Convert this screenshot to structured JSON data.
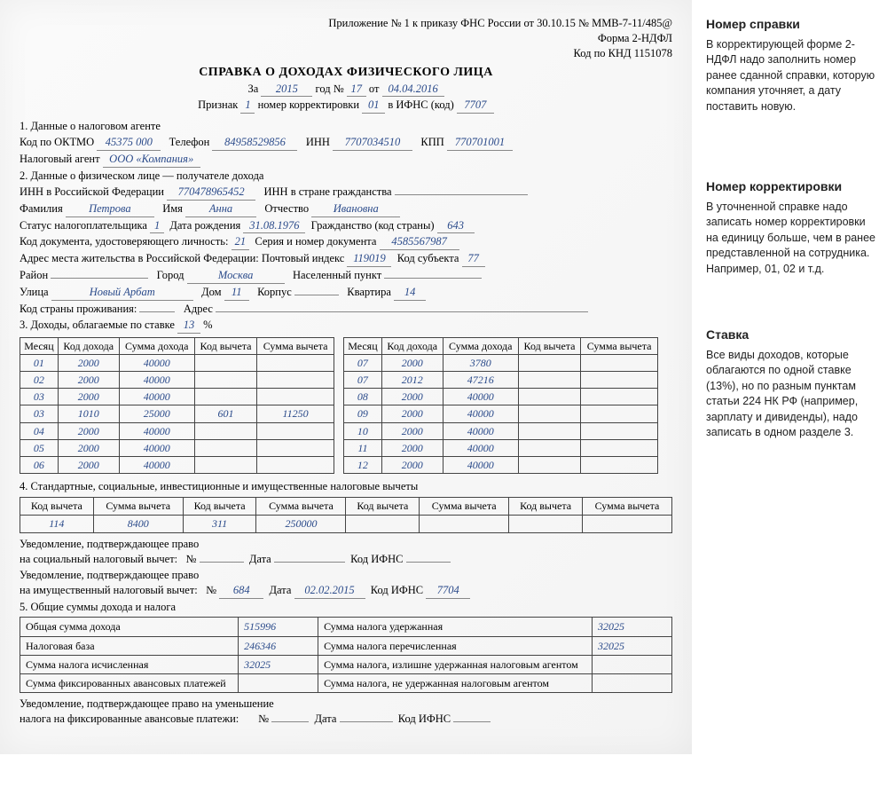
{
  "header": {
    "line1": "Приложение № 1 к приказу ФНС России от 30.10.15 № ММВ-7-11/485@",
    "line2": "Форма 2-НДФЛ",
    "line3": "Код по КНД 1151078"
  },
  "title": "СПРАВКА О ДОХОДАХ ФИЗИЧЕСКОГО ЛИЦА",
  "subtitle": {
    "za": "За",
    "year": "2015",
    "god_n": "год №",
    "num": "17",
    "ot": "от",
    "date": "04.04.2016"
  },
  "priznak": {
    "label": "Признак",
    "val": "1",
    "corr_label": "номер корректировки",
    "corr": "01",
    "ifns_label": "в ИФНС (код)",
    "ifns": "7707"
  },
  "sec1": {
    "head": "1. Данные о налоговом агенте",
    "oktmo_l": "Код по ОКТМО",
    "oktmo": "45375 000",
    "tel_l": "Телефон",
    "tel": "84958529856",
    "inn_l": "ИНН",
    "inn": "7707034510",
    "kpp_l": "КПП",
    "kpp": "770701001",
    "agent_l": "Налоговый агент",
    "agent": "ООО «Компания»"
  },
  "sec2": {
    "head": "2. Данные о физическом лице — получателе дохода",
    "innrf_l": "ИНН в Российской Федерации",
    "innrf": "770478965452",
    "inncc_l": "ИНН в стране гражданства",
    "inncc": "",
    "fam_l": "Фамилия",
    "fam": "Петрова",
    "name_l": "Имя",
    "name": "Анна",
    "otch_l": "Отчество",
    "otch": "Ивановна",
    "status_l": "Статус налогоплательщика",
    "status": "1",
    "birth_l": "Дата рождения",
    "birth": "31.08.1976",
    "cit_l": "Гражданство (код страны)",
    "cit": "643",
    "doccode_l": "Код документа, удостоверяющего личность:",
    "doccode": "21",
    "docsn_l": "Серия и номер документа",
    "docsn": "4585567987",
    "addr_l": "Адрес места жительства в Российской Федерации: Почтовый индекс",
    "addr_idx": "119019",
    "subj_l": "Код субъекта",
    "subj": "77",
    "rayon_l": "Район",
    "rayon": "",
    "city_l": "Город",
    "city": "Москва",
    "np_l": "Населенный пункт",
    "np": "",
    "street_l": "Улица",
    "street": "Новый Арбат",
    "dom_l": "Дом",
    "dom": "11",
    "korp_l": "Корпус",
    "korp": "",
    "kv_l": "Квартира",
    "kv": "14",
    "ccres_l": "Код страны проживания:",
    "ccres": "",
    "addr2_l": "Адрес",
    "addr2": ""
  },
  "sec3": {
    "head_a": "3. Доходы, облагаемые по ставке",
    "rate": "13",
    "pct": "%"
  },
  "income_headers": {
    "month": "Месяц",
    "code": "Код дохода",
    "sum": "Сумма дохода",
    "dcode": "Код вычета",
    "dsum": "Сумма вычета"
  },
  "income_left": [
    {
      "m": "01",
      "c": "2000",
      "s": "40000",
      "dc": "",
      "ds": ""
    },
    {
      "m": "02",
      "c": "2000",
      "s": "40000",
      "dc": "",
      "ds": ""
    },
    {
      "m": "03",
      "c": "2000",
      "s": "40000",
      "dc": "",
      "ds": ""
    },
    {
      "m": "03",
      "c": "1010",
      "s": "25000",
      "dc": "601",
      "ds": "11250"
    },
    {
      "m": "04",
      "c": "2000",
      "s": "40000",
      "dc": "",
      "ds": ""
    },
    {
      "m": "05",
      "c": "2000",
      "s": "40000",
      "dc": "",
      "ds": ""
    },
    {
      "m": "06",
      "c": "2000",
      "s": "40000",
      "dc": "",
      "ds": ""
    }
  ],
  "income_right": [
    {
      "m": "07",
      "c": "2000",
      "s": "3780",
      "dc": "",
      "ds": ""
    },
    {
      "m": "07",
      "c": "2012",
      "s": "47216",
      "dc": "",
      "ds": ""
    },
    {
      "m": "08",
      "c": "2000",
      "s": "40000",
      "dc": "",
      "ds": ""
    },
    {
      "m": "09",
      "c": "2000",
      "s": "40000",
      "dc": "",
      "ds": ""
    },
    {
      "m": "10",
      "c": "2000",
      "s": "40000",
      "dc": "",
      "ds": ""
    },
    {
      "m": "11",
      "c": "2000",
      "s": "40000",
      "dc": "",
      "ds": ""
    },
    {
      "m": "12",
      "c": "2000",
      "s": "40000",
      "dc": "",
      "ds": ""
    }
  ],
  "sec4": {
    "head": "4. Стандартные, социальные, инвестиционные и имущественные налоговые вычеты",
    "cols": {
      "c": "Код вычета",
      "s": "Сумма вычета"
    },
    "rows": [
      {
        "c": "114",
        "s": "8400"
      },
      {
        "c": "311",
        "s": "250000"
      },
      {
        "c": "",
        "s": ""
      },
      {
        "c": "",
        "s": ""
      }
    ]
  },
  "soc": {
    "l1": "Уведомление, подтверждающее право",
    "l2": "на социальный налоговый вычет:",
    "n": "№",
    "nv": "",
    "d": "Дата",
    "dv": "",
    "k": "Код ИФНС",
    "kv": ""
  },
  "prop": {
    "l1": "Уведомление, подтверждающее право",
    "l2": "на имущественный налоговый вычет:",
    "n": "№",
    "nv": "684",
    "d": "Дата",
    "dv": "02.02.2015",
    "k": "Код ИФНС",
    "kv": "7704"
  },
  "sec5": {
    "head": "5. Общие суммы дохода и налога",
    "rows": [
      [
        "Общая сумма дохода",
        "515996",
        "Сумма налога удержанная",
        "32025"
      ],
      [
        "Налоговая база",
        "246346",
        "Сумма налога перечисленная",
        "32025"
      ],
      [
        "Сумма налога исчисленная",
        "32025",
        "Сумма налога, излишне удержанная налоговым агентом",
        ""
      ],
      [
        "Сумма фиксированных авансовых платежей",
        "",
        "Сумма налога, не удержанная налоговым агентом",
        ""
      ]
    ],
    "foot_l1": "Уведомление, подтверждающее право на уменьшение",
    "foot_l2": "налога на фиксированные авансовые платежи:",
    "n": "№",
    "nv": "",
    "d": "Дата",
    "dv": "",
    "k": "Код ИФНС",
    "kv": ""
  },
  "anno": [
    {
      "title": "Номер справки",
      "body": "В корректирующей форме 2-НДФЛ надо заполнить номер ранее сданной справки, которую компания уточняет, а дату поставить новую."
    },
    {
      "title": "Номер корректировки",
      "body": "В уточненной справке надо записать номер корректировки на единицу больше, чем в ранее представленной на сотрудника. Например, 01, 02 и т.д."
    },
    {
      "title": "Ставка",
      "body": "Все виды доходов, которые облагаются по одной ставке (13%), но по разным пунктам статьи 224 НК РФ (например, зарплату и дивиденды), надо записать в одном разделе 3."
    }
  ]
}
